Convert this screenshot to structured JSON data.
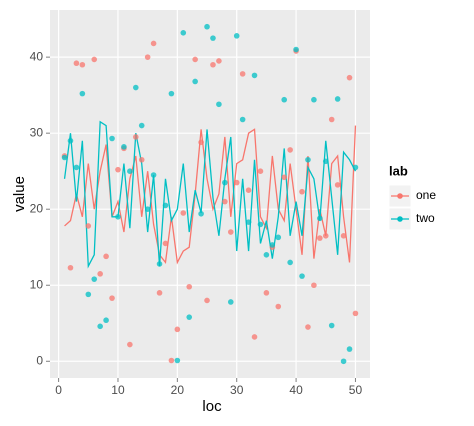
{
  "chart_data": {
    "type": "line_point",
    "x_label": "loc",
    "y_label": "value",
    "legend_title": "lab",
    "x": [
      1,
      2,
      3,
      4,
      5,
      6,
      7,
      8,
      9,
      10,
      11,
      12,
      13,
      14,
      15,
      16,
      17,
      18,
      19,
      20,
      21,
      22,
      23,
      24,
      25,
      26,
      27,
      28,
      29,
      30,
      31,
      32,
      33,
      34,
      35,
      36,
      37,
      38,
      39,
      40,
      41,
      42,
      43,
      44,
      45,
      46,
      47,
      48,
      49,
      50
    ],
    "series": [
      {
        "name": "one",
        "color": "#f8766d",
        "values": [
          17.8,
          18.5,
          22,
          19,
          26,
          20,
          25,
          28.5,
          19,
          21,
          17,
          24,
          27,
          19,
          25,
          18,
          14,
          13,
          19,
          13,
          14.5,
          15,
          22,
          30.5,
          24,
          20,
          22,
          29.5,
          19,
          26,
          26.5,
          30,
          30.5,
          19,
          17.5,
          27,
          20,
          18.5,
          26,
          20,
          14,
          27,
          13.5,
          20,
          16.5,
          26,
          27,
          19,
          13,
          31
        ],
        "point_values": [
          27,
          12.3,
          39.2,
          39,
          17.8,
          39.7,
          11.5,
          13.8,
          8.3,
          25.2,
          28,
          2.2,
          29.5,
          26.5,
          40,
          41.8,
          9,
          15.5,
          0.1,
          4.2,
          19.5,
          9.8,
          39.7,
          28.8,
          8,
          39,
          39.5,
          21,
          17,
          23.5,
          37.8,
          22.5,
          3.2,
          25,
          9,
          15,
          7.2,
          24.2,
          27.8,
          40.8,
          22.3,
          4.5,
          10,
          16.2,
          16.5,
          31.8,
          23.2,
          16.5,
          37.3,
          6.3
        ]
      },
      {
        "name": "two",
        "color": "#00bfc4",
        "values": [
          24,
          30,
          21,
          29,
          12.5,
          14,
          31.5,
          31,
          19,
          19,
          26,
          17.5,
          30,
          26,
          17,
          24.5,
          12.5,
          24,
          18.5,
          20,
          26,
          17,
          22.5,
          19.5,
          30.5,
          21.5,
          16.5,
          24,
          29.5,
          14.5,
          24,
          14.5,
          26.5,
          15.5,
          18.5,
          13.5,
          19,
          28,
          16.5,
          21,
          16.5,
          25.5,
          24,
          18.5,
          29,
          21.5,
          14,
          27.5,
          26.5,
          25
        ],
        "point_values": [
          26.8,
          29,
          25.5,
          35.2,
          8.8,
          10.8,
          4.6,
          5.4,
          29.3,
          19,
          28.2,
          25,
          36,
          31,
          20,
          24.5,
          12.8,
          20.5,
          35.2,
          0.1,
          43.2,
          5.8,
          36.8,
          19.4,
          44,
          42.5,
          33.8,
          23.5,
          7.8,
          42.8,
          31.8,
          18.3,
          37.6,
          18,
          14,
          15.3,
          16.3,
          34.4,
          13,
          41,
          11.2,
          26.5,
          34.4,
          18.8,
          26.3,
          4.7,
          34.5,
          0,
          1.6,
          25.5
        ]
      }
    ],
    "xlim": [
      -1.45,
      52.45
    ],
    "xticks": [
      0,
      10,
      20,
      30,
      40,
      50
    ],
    "ylim": [
      -2.2,
      46.2
    ],
    "yticks": [
      0,
      10,
      20,
      30,
      40
    ],
    "grid": true
  }
}
